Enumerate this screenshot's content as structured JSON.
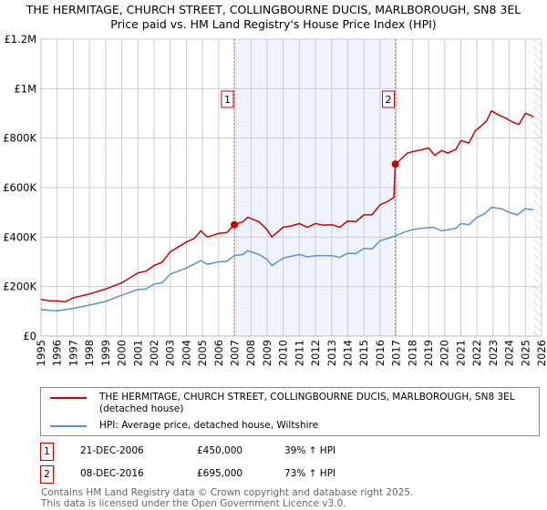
{
  "title": "THE HERMITAGE, CHURCH STREET, COLLINGBOURNE DUCIS, MARLBOROUGH, SN8 3EL",
  "subtitle": "Price paid vs. HM Land Registry's House Price Index (HPI)",
  "chart_data": {
    "type": "line",
    "xlim": [
      1995,
      2026
    ],
    "ylim": [
      0,
      1200000
    ],
    "yticks": [
      {
        "v": 0,
        "label": "£0"
      },
      {
        "v": 200000,
        "label": "£200K"
      },
      {
        "v": 400000,
        "label": "£400K"
      },
      {
        "v": 600000,
        "label": "£600K"
      },
      {
        "v": 800000,
        "label": "£800K"
      },
      {
        "v": 1000000,
        "label": "£1M"
      },
      {
        "v": 1200000,
        "label": "£1.2M"
      }
    ],
    "xticks": [
      1995,
      1996,
      1997,
      1998,
      1999,
      2000,
      2001,
      2002,
      2003,
      2004,
      2005,
      2006,
      2007,
      2008,
      2009,
      2010,
      2011,
      2012,
      2013,
      2014,
      2015,
      2016,
      2017,
      2018,
      2019,
      2020,
      2021,
      2022,
      2023,
      2024,
      2025,
      2026
    ],
    "shaded_range": [
      2006.97,
      2016.94
    ],
    "hatched_from": 2025.5,
    "colors": {
      "property": "#cc0000",
      "hpi": "#5b8fd6",
      "shade": "#eef3fc"
    },
    "series": [
      {
        "name": "THE HERMITAGE, CHURCH STREET, COLLINGBOURNE DUCIS, MARLBOROUGH, SN8 3EL (detached house)",
        "key": "property",
        "x": [
          1995,
          1995.5,
          1996,
          1996.5,
          1997,
          1998,
          1999,
          2000,
          2001,
          2001.5,
          2002,
          2002.5,
          2003,
          2003.5,
          2004,
          2004.5,
          2004.9,
          2005.3,
          2006,
          2006.5,
          2006.97,
          2007.5,
          2007.8,
          2008.5,
          2009,
          2009.3,
          2010,
          2010.5,
          2011,
          2011.5,
          2012,
          2012.5,
          2013,
          2013.5,
          2014,
          2014.5,
          2015,
          2015.5,
          2016,
          2016.5,
          2016.85,
          2016.94,
          2017.3,
          2017.7,
          2018,
          2018.5,
          2019,
          2019.4,
          2019.8,
          2020.2,
          2020.7,
          2021,
          2021.5,
          2021.9,
          2022.2,
          2022.6,
          2022.9,
          2023.3,
          2023.8,
          2024.2,
          2024.6,
          2025,
          2025.3,
          2025.5
        ],
        "y": [
          148000,
          143000,
          142000,
          138000,
          155000,
          170000,
          190000,
          215000,
          255000,
          262000,
          285000,
          298000,
          340000,
          360000,
          380000,
          395000,
          425000,
          400000,
          415000,
          418000,
          450000,
          462000,
          480000,
          462000,
          430000,
          400000,
          440000,
          445000,
          455000,
          440000,
          455000,
          448000,
          450000,
          440000,
          465000,
          462000,
          490000,
          490000,
          530000,
          545000,
          560000,
          695000,
          715000,
          740000,
          745000,
          752000,
          760000,
          730000,
          750000,
          740000,
          755000,
          790000,
          780000,
          830000,
          845000,
          870000,
          910000,
          895000,
          880000,
          865000,
          855000,
          900000,
          893000,
          885000
        ]
      },
      {
        "name": "HPI: Average price, detached house, Wiltshire",
        "key": "hpi",
        "x": [
          1995,
          1995.5,
          1996,
          1997,
          1998,
          1999,
          2000,
          2001,
          2001.5,
          2002,
          2002.5,
          2003,
          2004,
          2004.9,
          2005.3,
          2006,
          2006.5,
          2006.97,
          2007.5,
          2007.8,
          2008.5,
          2009,
          2009.3,
          2010,
          2011,
          2011.5,
          2012,
          2013,
          2013.5,
          2014,
          2014.5,
          2015,
          2015.5,
          2016,
          2016.5,
          2016.94,
          2017.5,
          2018,
          2018.5,
          2019.3,
          2019.8,
          2020.2,
          2020.7,
          2021,
          2021.5,
          2022,
          2022.5,
          2022.9,
          2023.5,
          2024,
          2024.5,
          2025,
          2025.5
        ],
        "y": [
          108000,
          104000,
          102000,
          112000,
          125000,
          140000,
          165000,
          188000,
          190000,
          210000,
          215000,
          250000,
          275000,
          305000,
          290000,
          300000,
          302000,
          325000,
          330000,
          345000,
          330000,
          310000,
          285000,
          315000,
          330000,
          320000,
          325000,
          325000,
          318000,
          335000,
          333000,
          355000,
          352000,
          385000,
          395000,
          405000,
          420000,
          430000,
          435000,
          440000,
          425000,
          430000,
          435000,
          455000,
          450000,
          480000,
          495000,
          520000,
          515000,
          500000,
          490000,
          515000,
          510000
        ]
      }
    ],
    "sales": [
      {
        "label": "1",
        "x": 2006.97,
        "y": 450000
      },
      {
        "label": "2",
        "x": 2016.94,
        "y": 695000
      }
    ]
  },
  "legend": {
    "property": "THE HERMITAGE, CHURCH STREET, COLLINGBOURNE DUCIS, MARLBOROUGH, SN8 3EL (detached house)",
    "hpi": "HPI: Average price, detached house, Wiltshire"
  },
  "transactions": [
    {
      "num": "1",
      "date": "21-DEC-2006",
      "price": "£450,000",
      "hpi": "39% ↑ HPI"
    },
    {
      "num": "2",
      "date": "08-DEC-2016",
      "price": "£695,000",
      "hpi": "73% ↑ HPI"
    }
  ],
  "footer": {
    "line1": "Contains HM Land Registry data © Crown copyright and database right 2025.",
    "line2": "This data is licensed under the Open Government Licence v3.0."
  }
}
